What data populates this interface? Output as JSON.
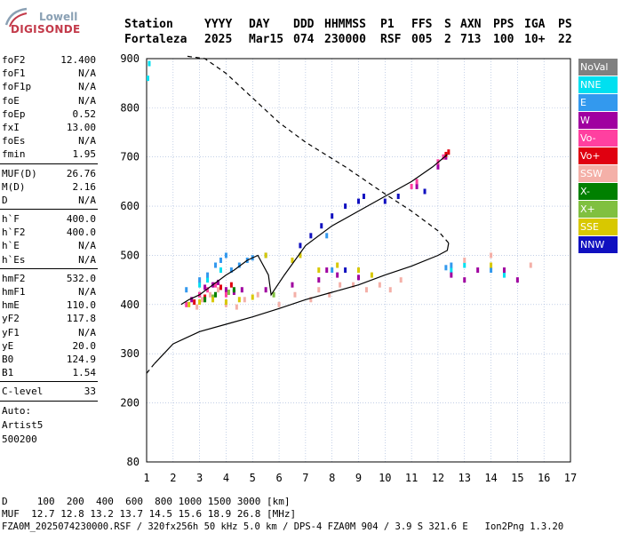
{
  "logo": {
    "line1": "Lowell",
    "line2": "DIGISONDE"
  },
  "header": {
    "row1": [
      "Station",
      "YYYY",
      "DAY",
      "DDD",
      "HHMMSS",
      "P1",
      "FFS",
      "S",
      "AXN",
      "PPS",
      "IGA",
      "PS"
    ],
    "row2": [
      "Fortaleza",
      "2025",
      "Mar15",
      "074",
      "230000",
      "RSF",
      "005",
      "2",
      "713",
      "100",
      "10+",
      "22"
    ]
  },
  "params": [
    {
      "k": "foF2",
      "v": "12.400"
    },
    {
      "k": "foF1",
      "v": "N/A"
    },
    {
      "k": "foF1p",
      "v": "N/A"
    },
    {
      "k": "foE",
      "v": "N/A"
    },
    {
      "k": "foEp",
      "v": "0.52"
    },
    {
      "k": "fxI",
      "v": "13.00"
    },
    {
      "k": "foEs",
      "v": "N/A"
    },
    {
      "k": "fmin",
      "v": "1.95"
    },
    {
      "sep": true
    },
    {
      "k": "MUF(D)",
      "v": "26.76"
    },
    {
      "k": "M(D)",
      "v": "2.16"
    },
    {
      "k": "D",
      "v": "N/A"
    },
    {
      "sep": true
    },
    {
      "k": "h`F",
      "v": "400.0"
    },
    {
      "k": "h`F2",
      "v": "400.0"
    },
    {
      "k": "h`E",
      "v": "N/A"
    },
    {
      "k": "h`Es",
      "v": "N/A"
    },
    {
      "sep": true
    },
    {
      "k": "hmF2",
      "v": "532.0"
    },
    {
      "k": "hmF1",
      "v": "N/A"
    },
    {
      "k": "hmE",
      "v": "110.0"
    },
    {
      "k": "yF2",
      "v": "117.8"
    },
    {
      "k": "yF1",
      "v": "N/A"
    },
    {
      "k": "yE",
      "v": "20.0"
    },
    {
      "k": "B0",
      "v": "124.9"
    },
    {
      "k": "B1",
      "v": "1.54"
    },
    {
      "sep": true
    },
    {
      "k": "C-level",
      "v": "33"
    },
    {
      "sep": true
    }
  ],
  "auto": [
    "Auto:",
    "Artist5",
    "500200"
  ],
  "legend": [
    {
      "label": "NoVal",
      "color": "#808080"
    },
    {
      "label": "NNE",
      "color": "#00e0f0"
    },
    {
      "label": "E",
      "color": "#3399ee"
    },
    {
      "label": "W",
      "color": "#a000a0"
    },
    {
      "label": "Vo-",
      "color": "#ff40a0"
    },
    {
      "label": "Vo+",
      "color": "#e00010"
    },
    {
      "label": "SSW",
      "color": "#f4b0a8"
    },
    {
      "label": "X-",
      "color": "#008000"
    },
    {
      "label": "X+",
      "color": "#80c040"
    },
    {
      "label": "SSE",
      "color": "#d8c800"
    },
    {
      "label": "NNW",
      "color": "#1010c0"
    }
  ],
  "footer": {
    "line1": "D     100  200  400  600  800 1000 1500 3000 [km]",
    "line2": "MUF  12.7 12.8 13.2 13.7 14.5 15.6 18.9 26.8 [MHz]",
    "line3": "FZA0M_2025074230000.RSF / 320fx256h 50 kHz 5.0 km / DPS-4 FZA0M 904 / 3.9 S 321.6 E   Ion2Png 1.3.20"
  },
  "chart_data": {
    "type": "scatter",
    "title": "",
    "xlabel": "",
    "ylabel": "",
    "xlim": [
      1,
      17
    ],
    "ylim": [
      80,
      900
    ],
    "x_ticks": [
      1,
      2,
      3,
      4,
      5,
      6,
      7,
      8,
      9,
      10,
      11,
      12,
      13,
      14,
      15,
      16,
      17
    ],
    "y_ticks": [
      80,
      200,
      300,
      400,
      500,
      600,
      700,
      800,
      900
    ],
    "grid": true,
    "legend_position": "right",
    "series": [
      {
        "name": "NNE",
        "points": [
          [
            1.05,
            860
          ],
          [
            1.1,
            890
          ],
          [
            3.0,
            440
          ],
          [
            3.3,
            450
          ],
          [
            3.8,
            470
          ],
          [
            12.5,
            470
          ],
          [
            13.0,
            480
          ],
          [
            14.5,
            460
          ]
        ]
      },
      {
        "name": "E",
        "points": [
          [
            2.5,
            430
          ],
          [
            3.0,
            450
          ],
          [
            3.3,
            460
          ],
          [
            3.6,
            480
          ],
          [
            3.8,
            490
          ],
          [
            4.0,
            500
          ],
          [
            4.2,
            470
          ],
          [
            4.5,
            480
          ],
          [
            4.8,
            490
          ],
          [
            5.0,
            495
          ],
          [
            5.5,
            500
          ],
          [
            7.8,
            540
          ],
          [
            8.0,
            470
          ],
          [
            12.3,
            475
          ],
          [
            12.5,
            480
          ],
          [
            14.0,
            470
          ]
        ]
      },
      {
        "name": "W",
        "points": [
          [
            2.7,
            410
          ],
          [
            3.0,
            420
          ],
          [
            3.2,
            435
          ],
          [
            3.5,
            440
          ],
          [
            3.7,
            445
          ],
          [
            4.0,
            430
          ],
          [
            4.3,
            425
          ],
          [
            4.6,
            430
          ],
          [
            5.5,
            430
          ],
          [
            6.5,
            440
          ],
          [
            7.5,
            450
          ],
          [
            7.8,
            470
          ],
          [
            8.2,
            460
          ],
          [
            9.0,
            455
          ],
          [
            11.2,
            640
          ],
          [
            12.0,
            680
          ],
          [
            12.3,
            700
          ],
          [
            12.5,
            460
          ],
          [
            13.0,
            450
          ],
          [
            13.5,
            470
          ],
          [
            14.5,
            470
          ],
          [
            15.0,
            450
          ]
        ]
      },
      {
        "name": "Vo-",
        "points": [
          [
            2.5,
            400
          ],
          [
            3.0,
            420
          ],
          [
            3.3,
            430
          ],
          [
            3.6,
            440
          ],
          [
            4.0,
            420
          ],
          [
            11.0,
            640
          ],
          [
            11.2,
            650
          ],
          [
            12.0,
            690
          ],
          [
            12.2,
            700
          ]
        ]
      },
      {
        "name": "Vo+",
        "points": [
          [
            2.8,
            405
          ],
          [
            3.2,
            415
          ],
          [
            3.8,
            435
          ],
          [
            4.2,
            440
          ],
          [
            12.3,
            705
          ],
          [
            12.4,
            710
          ]
        ]
      },
      {
        "name": "SSW",
        "points": [
          [
            2.9,
            395
          ],
          [
            3.1,
            410
          ],
          [
            3.4,
            420
          ],
          [
            3.7,
            430
          ],
          [
            4.0,
            400
          ],
          [
            4.4,
            395
          ],
          [
            4.7,
            410
          ],
          [
            5.2,
            420
          ],
          [
            6.0,
            400
          ],
          [
            6.6,
            420
          ],
          [
            7.2,
            410
          ],
          [
            7.5,
            430
          ],
          [
            7.9,
            420
          ],
          [
            8.3,
            440
          ],
          [
            8.8,
            440
          ],
          [
            9.3,
            430
          ],
          [
            9.8,
            440
          ],
          [
            10.2,
            430
          ],
          [
            10.6,
            450
          ],
          [
            13.0,
            490
          ],
          [
            14.0,
            500
          ],
          [
            15.5,
            480
          ]
        ]
      },
      {
        "name": "X-",
        "points": [
          [
            3.2,
            410
          ],
          [
            3.6,
            420
          ],
          [
            4.3,
            430
          ]
        ]
      },
      {
        "name": "X+",
        "points": [
          [
            3.5,
            415
          ],
          [
            4.1,
            425
          ],
          [
            5.8,
            420
          ]
        ]
      },
      {
        "name": "SSE",
        "points": [
          [
            2.6,
            400
          ],
          [
            3.0,
            405
          ],
          [
            3.5,
            410
          ],
          [
            4.0,
            405
          ],
          [
            4.5,
            410
          ],
          [
            5.0,
            415
          ],
          [
            5.5,
            500
          ],
          [
            6.5,
            490
          ],
          [
            6.8,
            500
          ],
          [
            7.5,
            470
          ],
          [
            8.2,
            480
          ],
          [
            9.0,
            470
          ],
          [
            9.5,
            460
          ],
          [
            14.0,
            480
          ]
        ]
      },
      {
        "name": "NNW",
        "points": [
          [
            6.8,
            520
          ],
          [
            7.2,
            540
          ],
          [
            7.6,
            560
          ],
          [
            8.0,
            580
          ],
          [
            8.5,
            600
          ],
          [
            9.0,
            610
          ],
          [
            9.2,
            620
          ],
          [
            10.0,
            610
          ],
          [
            10.5,
            620
          ],
          [
            11.5,
            630
          ],
          [
            8.5,
            470
          ]
        ]
      }
    ],
    "traces": {
      "trace_solid": [
        [
          2.3,
          400
        ],
        [
          2.6,
          410
        ],
        [
          3.0,
          420
        ],
        [
          3.5,
          440
        ],
        [
          4.0,
          460
        ],
        [
          4.3,
          470
        ],
        [
          4.8,
          490
        ],
        [
          5.2,
          500
        ],
        [
          5.6,
          460
        ],
        [
          5.7,
          420
        ],
        [
          6.2,
          460
        ],
        [
          7.0,
          520
        ],
        [
          8.0,
          560
        ],
        [
          9.0,
          590
        ],
        [
          10.0,
          620
        ],
        [
          11.0,
          650
        ],
        [
          11.8,
          680
        ],
        [
          12.35,
          705
        ]
      ],
      "profile_solid": [
        [
          1.3,
          280
        ],
        [
          2.0,
          320
        ],
        [
          3.0,
          345
        ],
        [
          4.0,
          360
        ],
        [
          5.0,
          375
        ],
        [
          6.0,
          392
        ],
        [
          7.0,
          410
        ],
        [
          8.0,
          425
        ],
        [
          9.0,
          440
        ],
        [
          10.0,
          460
        ],
        [
          11.0,
          478
        ],
        [
          12.0,
          500
        ],
        [
          12.35,
          510
        ],
        [
          12.4,
          525
        ]
      ],
      "profile_dashed": [
        [
          1.0,
          260
        ],
        [
          1.3,
          280
        ]
      ],
      "profile_dashed_upper": [
        [
          12.4,
          525
        ],
        [
          12.0,
          550
        ],
        [
          11.0,
          590
        ],
        [
          10.0,
          625
        ],
        [
          8.5,
          680
        ],
        [
          7.0,
          730
        ],
        [
          6.0,
          770
        ],
        [
          5.0,
          820
        ],
        [
          4.0,
          870
        ],
        [
          3.2,
          900
        ],
        [
          2.5,
          905
        ]
      ]
    }
  }
}
